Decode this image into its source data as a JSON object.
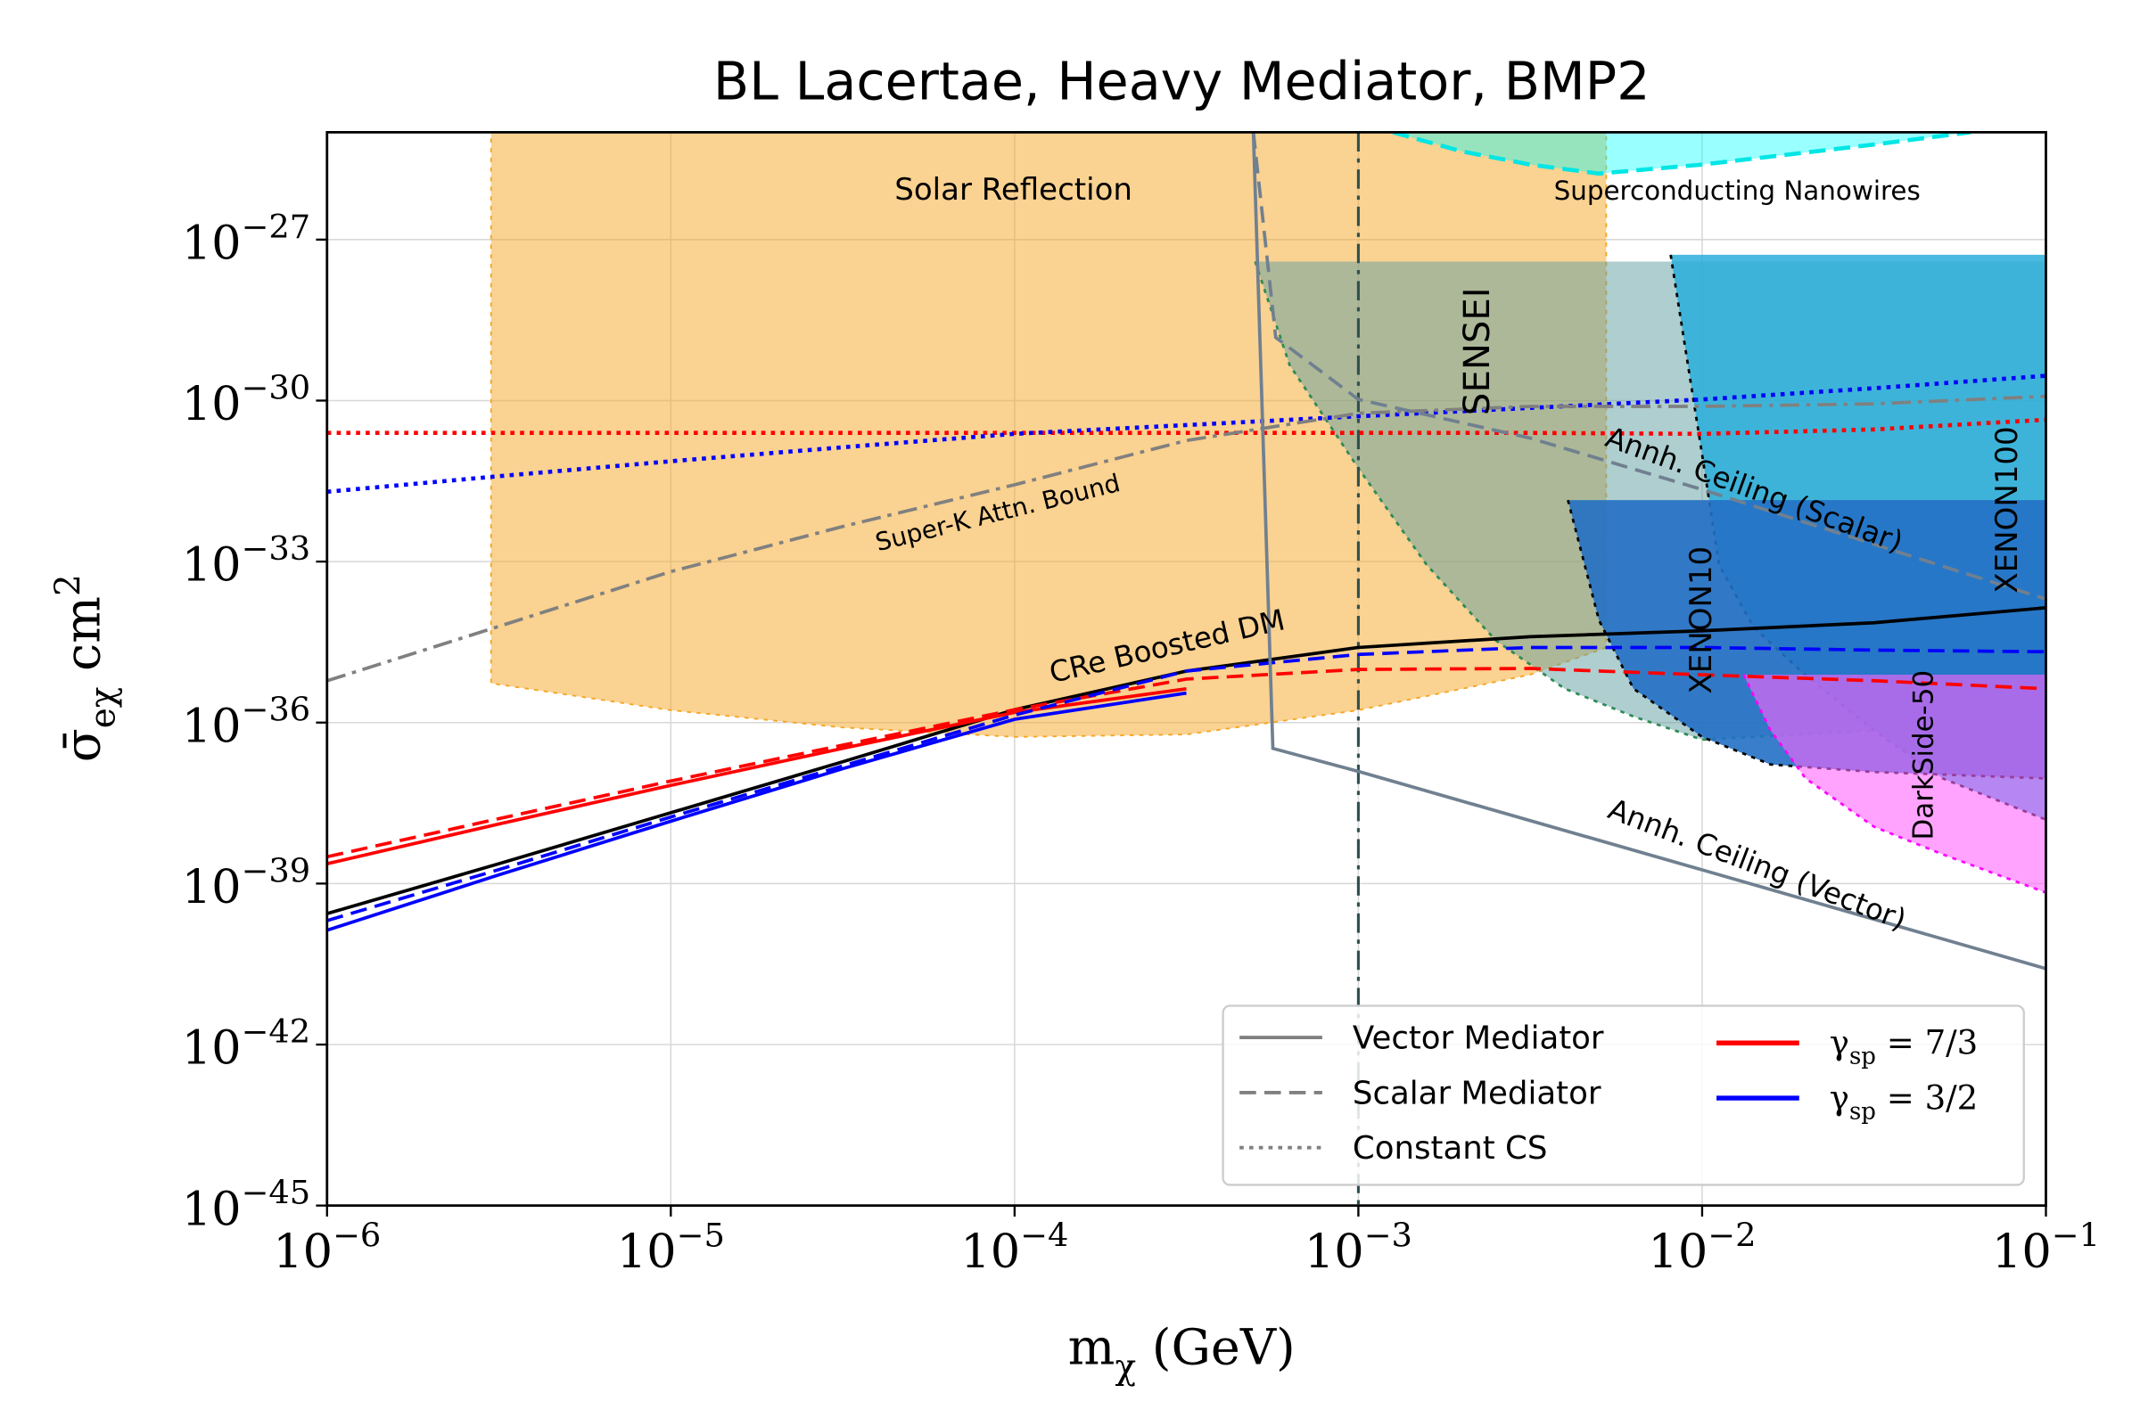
{
  "chart_data": {
    "type": "line",
    "title": "BL Lacertae, Heavy Mediator, BMP2",
    "x_label": {
      "base": "m",
      "sub": "χ",
      "rest": " (GeV)"
    },
    "y_label": {
      "base": "σ̄",
      "sub": "eχ",
      "rest": " cm",
      "sup": "2"
    },
    "log_x": true,
    "log_y": true,
    "grid": true,
    "xlim": [
      1e-06,
      0.1
    ],
    "ylim": [
      1e-45,
      1e-25
    ],
    "xticks": [
      {
        "value": 1e-06,
        "label": {
          "base": "10",
          "exponent": "−6"
        }
      },
      {
        "value": 1e-05,
        "label": {
          "base": "10",
          "exponent": "−5"
        }
      },
      {
        "value": 0.0001,
        "label": {
          "base": "10",
          "exponent": "−4"
        }
      },
      {
        "value": 0.001,
        "label": {
          "base": "10",
          "exponent": "−3"
        }
      },
      {
        "value": 0.01,
        "label": {
          "base": "10",
          "exponent": "−2"
        }
      },
      {
        "value": 0.1,
        "label": {
          "base": "10",
          "exponent": "−1"
        }
      }
    ],
    "yticks": [
      {
        "value": 1e-45,
        "label": {
          "base": "10",
          "exponent": "−45"
        }
      },
      {
        "value": 1e-42,
        "label": {
          "base": "10",
          "exponent": "−42"
        }
      },
      {
        "value": 1e-39,
        "label": {
          "base": "10",
          "exponent": "−39"
        }
      },
      {
        "value": 1e-36,
        "label": {
          "base": "10",
          "exponent": "−36"
        }
      },
      {
        "value": 1e-33,
        "label": {
          "base": "10",
          "exponent": "−33"
        }
      },
      {
        "value": 1e-30,
        "label": {
          "base": "10",
          "exponent": "−30"
        }
      },
      {
        "value": 1e-27,
        "label": {
          "base": "10",
          "exponent": "−27"
        }
      }
    ],
    "vlines": [
      {
        "x": 0.001,
        "color": "#2f4f4f",
        "dash": "dashdot"
      }
    ],
    "regions": [
      {
        "name": "Solar Reflection",
        "color": "#f5a623",
        "alpha": 0.5,
        "edge_color": "#f5a623",
        "edge_dash": "dotted",
        "edge": "outline",
        "x": [
          3e-06,
          1e-05,
          3.16e-05,
          0.0001,
          0.000316,
          0.001,
          0.00316,
          0.00526
        ],
        "lower": [
          5.4e-36,
          1.7e-36,
          8.1e-37,
          5.4e-37,
          6e-37,
          1.7e-36,
          7.8e-36,
          2.5e-35
        ],
        "upper": [
          1e-25,
          1e-25,
          1e-25,
          1e-25,
          1e-25,
          1e-25,
          1e-25,
          1e-25
        ]
      },
      {
        "name": "SENSEI",
        "color": "#5f9ea0",
        "alpha": 0.5,
        "edge_color": "#2e8b57",
        "edge_dash": "dotted",
        "edge": "lower",
        "x": [
          0.000501,
          0.000631,
          0.001,
          0.00158,
          0.00251,
          0.00398,
          0.00631,
          0.01,
          0.0316,
          0.1
        ],
        "lower": [
          3.9e-28,
          4.6e-30,
          5.5e-32,
          8.7e-34,
          3.4e-35,
          4.3e-36,
          1.3e-36,
          4.8e-37,
          7.2e-37,
          1.55e-36
        ],
        "upper": [
          3.9e-28,
          3.9e-28,
          3.9e-28,
          3.9e-28,
          3.9e-28,
          3.9e-28,
          3.9e-28,
          3.9e-28,
          3.9e-28,
          3.9e-28
        ]
      },
      {
        "name": "Superconducting Nanowires",
        "color": "#00ffff",
        "alpha": 0.4,
        "edge_color": "#00e5e5",
        "edge_dash": "dashed",
        "edge": "lower",
        "x": [
          0.00126,
          0.002,
          0.00316,
          0.00501,
          0.01,
          0.0316,
          0.0603
        ],
        "lower": [
          1e-25,
          4.4e-26,
          2.5e-26,
          1.7e-26,
          2.5e-26,
          5.9e-26,
          1e-25
        ],
        "upper": [
          1e-25,
          1e-25,
          1e-25,
          1e-25,
          1e-25,
          1e-25,
          1e-25
        ]
      },
      {
        "name": "XENON100",
        "color": "#2aaedb",
        "alpha": 0.85,
        "edge_color": "#000000",
        "edge_dash": "dotted",
        "edge": "lower",
        "x": [
          0.0081,
          0.0089,
          0.01,
          0.0112,
          0.0141,
          0.02,
          0.0316,
          0.0501,
          0.1
        ],
        "lower": [
          5.2e-28,
          1.1e-29,
          9.8e-32,
          8.7e-34,
          6e-35,
          7.6e-36,
          7.2e-37,
          9.1e-38,
          1.55e-38
        ],
        "upper": [
          5.2e-28,
          5.2e-28,
          5.2e-28,
          5.2e-28,
          5.2e-28,
          5.2e-28,
          5.2e-28,
          5.2e-28,
          5.2e-28
        ]
      },
      {
        "name": "XENON10",
        "color": "#2370c4",
        "alpha": 0.9,
        "edge_color": "#000000",
        "edge_dash": "dotted",
        "edge": "lower",
        "x": [
          0.00407,
          0.00501,
          0.00631,
          0.01,
          0.0158,
          0.0316,
          0.1
        ],
        "lower": [
          1.4e-32,
          8.1e-35,
          4.3e-36,
          5.4e-37,
          1.66e-37,
          1.2e-37,
          9.1e-38
        ],
        "upper": [
          1.4e-32,
          1.4e-32,
          1.4e-32,
          1.4e-32,
          1.4e-32,
          1.4e-32,
          1.4e-32
        ]
      },
      {
        "name": "DarkSide-50",
        "color": "#ff66ff",
        "alpha": 0.6,
        "edge_color": "#ff00ff",
        "edge_dash": "dotted",
        "edge": "lower",
        "x": [
          0.0132,
          0.0158,
          0.02,
          0.0316,
          0.0501,
          0.1
        ],
        "lower": [
          7.8e-36,
          7.2e-37,
          9.1e-38,
          1.15e-38,
          3.5e-39,
          6.8e-40
        ],
        "upper": [
          7.8e-36,
          7.8e-36,
          7.8e-36,
          7.8e-36,
          7.8e-36,
          7.8e-36
        ]
      }
    ],
    "x": [
      1e-06,
      3.16e-06,
      1e-05,
      3.16e-05,
      0.0001,
      0.000316,
      0.001,
      0.00316,
      0.01,
      0.0316,
      0.1
    ],
    "series": [
      {
        "name": "CRe Boosted DM",
        "color": "#000000",
        "dash": "solid",
        "values": [
          2.75e-40,
          2.34e-39,
          2.09e-38,
          1.86e-37,
          1.74e-36,
          9.1e-36,
          2.51e-35,
          3.98e-35,
          5.13e-35,
          7.24e-35,
          1.38e-34
        ]
      },
      {
        "color": "#ff0000",
        "dash": "solid",
        "values": [
          2.34e-39,
          1.29e-38,
          6.76e-38,
          3.31e-37,
          1.55e-36,
          4.27e-36,
          null,
          null,
          null,
          null,
          null
        ]
      },
      {
        "color": "#ff0000",
        "dash": "dashed",
        "values": [
          3.16e-39,
          1.62e-38,
          8.13e-38,
          3.8e-37,
          1.74e-36,
          6.46e-36,
          9.77e-36,
          1.02e-35,
          7.76e-36,
          6.03e-36,
          4.27e-36
        ]
      },
      {
        "color": "#0000ff",
        "dash": "solid",
        "values": [
          1.35e-40,
          1.45e-39,
          1.45e-38,
          1.38e-37,
          1.15e-36,
          3.55e-36,
          null,
          null,
          null,
          null,
          null
        ]
      },
      {
        "color": "#0000ff",
        "dash": "dashed",
        "values": [
          2.04e-40,
          1.82e-39,
          1.74e-38,
          1.55e-37,
          1.38e-36,
          9.12e-36,
          1.86e-35,
          2.51e-35,
          2.51e-35,
          2.24e-35,
          2.09e-35
        ]
      },
      {
        "color": "#ff0000",
        "dash": "dotted",
        "values": [
          2.5e-31,
          2.5e-31,
          2.5e-31,
          2.5e-31,
          2.5e-31,
          2.5e-31,
          2.5e-31,
          2.5e-31,
          2.4e-31,
          2.9e-31,
          4.4e-31
        ]
      },
      {
        "color": "#0000ff",
        "dash": "dotted",
        "values": [
          2e-32,
          3.9e-32,
          7.4e-32,
          1.35e-31,
          2.4e-31,
          3.5e-31,
          5.1e-31,
          7.3e-31,
          1.05e-30,
          1.7e-30,
          2.9e-30
        ]
      },
      {
        "name": "Super-K Attn. Bound",
        "color": "#808080",
        "dash": "dashdot",
        "values": [
          6e-36,
          6.2e-35,
          6.5e-34,
          4.5e-33,
          2.7e-32,
          1.8e-31,
          5.8e-31,
          7.8e-31,
          7.8e-31,
          8.7e-31,
          1.2e-30
        ]
      },
      {
        "name": "Annh. Ceiling (Vector)",
        "color": "#708090",
        "dash": "solid",
        "x": [
          0.000495,
          0.000564,
          0.001,
          0.01,
          0.1
        ],
        "values": [
          1e-25,
          3.3e-37,
          1.23e-37,
          1.8e-39,
          2.6e-41
        ]
      },
      {
        "name": "Annh. Ceiling (Scalar)",
        "color": "#708090",
        "dash": "dashed",
        "x": [
          0.000495,
          0.000575,
          0.001,
          0.00316,
          0.01,
          0.1
        ],
        "values": [
          1e-25,
          1.5e-29,
          1.05e-30,
          2e-31,
          2.2e-32,
          2e-34
        ]
      }
    ],
    "legend": {
      "loc": "lower right",
      "entries": [
        {
          "label": "Vector Mediator",
          "color": "#808080",
          "dash": "solid"
        },
        {
          "label": "Scalar Mediator",
          "color": "#808080",
          "dash": "dashed"
        },
        {
          "label": "Constant CS",
          "color": "#808080",
          "dash": "dotted"
        },
        {
          "label": {
            "base": "γ",
            "sub": "sp",
            "rest": " = 7/3"
          },
          "color": "#ff0000",
          "dash": "solid"
        },
        {
          "label": {
            "base": "γ",
            "sub": "sp",
            "rest": " = 3/2"
          },
          "color": "#0000ff",
          "dash": "solid"
        }
      ]
    }
  }
}
